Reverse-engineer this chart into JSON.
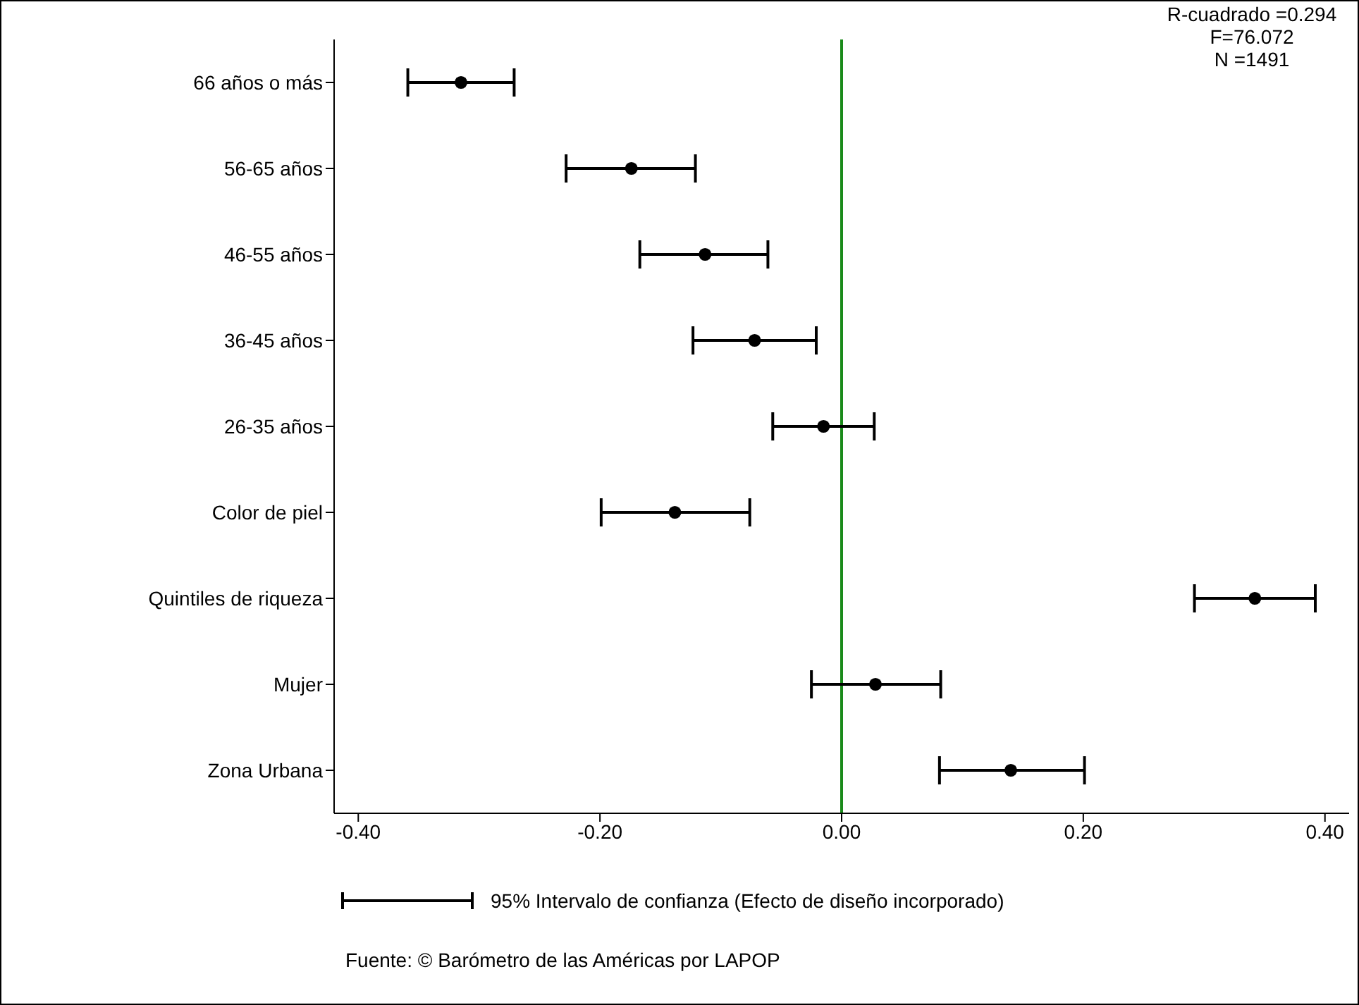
{
  "chart_data": {
    "type": "scatter",
    "orientation": "horizontal",
    "categories": [
      "66 años o más",
      "56-65 años",
      "46-55 años",
      "36-45 años",
      "26-35 años",
      "Color de piel",
      "Quintiles de riqueza",
      "Mujer",
      "Zona Urbana"
    ],
    "values": [
      -0.315,
      -0.174,
      -0.113,
      -0.072,
      -0.015,
      -0.138,
      0.342,
      0.028,
      0.14
    ],
    "errors": [
      [
        -0.359,
        -0.271
      ],
      [
        -0.228,
        -0.121
      ],
      [
        -0.167,
        -0.061
      ],
      [
        -0.123,
        -0.021
      ],
      [
        -0.057,
        0.027
      ],
      [
        -0.199,
        -0.076
      ],
      [
        0.292,
        0.392
      ],
      [
        -0.025,
        0.082
      ],
      [
        0.081,
        0.201
      ]
    ],
    "color": "#000000",
    "marker": "circle",
    "xlim": [
      -0.42,
      0.42
    ],
    "xticks": [
      {
        "value": -0.4,
        "label": "-0.40"
      },
      {
        "value": -0.2,
        "label": "-0.20"
      },
      {
        "value": 0,
        "label": "0.00"
      },
      {
        "value": 0.2,
        "label": "0.20"
      },
      {
        "value": 0.4,
        "label": "0.40"
      }
    ],
    "ref_lines": [
      {
        "axis": "x",
        "value": 0,
        "color": "#1a8a1a"
      }
    ],
    "grid": false,
    "legend": false,
    "annotations": [
      "R-cuadrado =0.294",
      "F=76.072",
      "N =1491",
      "95% Intervalo de confianza (Efecto de diseño incorporado)",
      "Fuente: © Barómetro de las Américas por LAPOP"
    ]
  }
}
